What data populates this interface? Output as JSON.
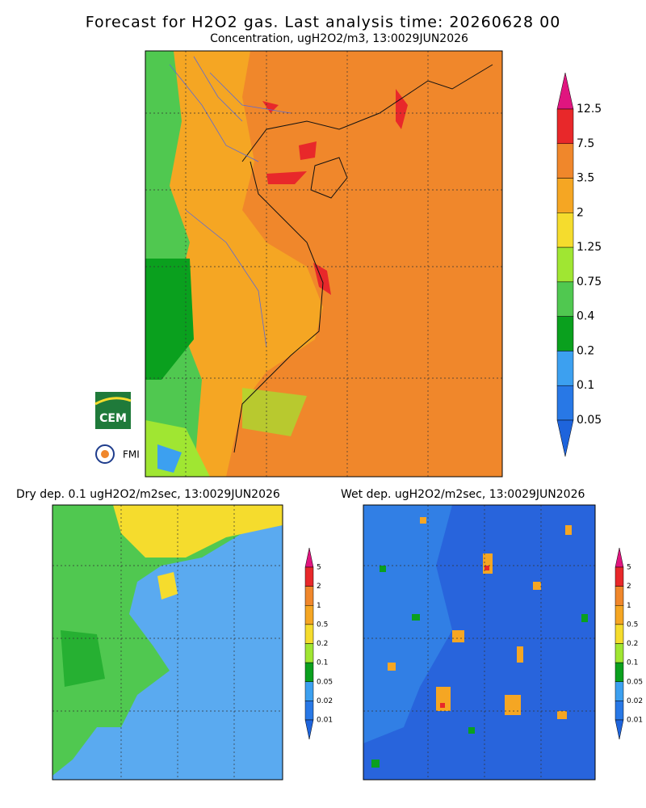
{
  "header": {
    "title": "Forecast for H2O2 gas. Last analysis time: 20260628 00",
    "subtitle": "Concentration, ugH2O2/m3, 13:0029JUN2026"
  },
  "main_map": {
    "colorbar": {
      "labels": [
        "12.5",
        "7.5",
        "3.5",
        "2",
        "1.25",
        "0.75",
        "0.4",
        "0.2",
        "0.1",
        "0.05"
      ],
      "colors": [
        "#e0157f",
        "#e8282a",
        "#f0872b",
        "#f5a623",
        "#f5dc2d",
        "#a0e632",
        "#50c850",
        "#0aa01e",
        "#3ca0f0",
        "#2878e6",
        "#1e64dc"
      ]
    }
  },
  "logos": [
    "CEM",
    "FMI"
  ],
  "dry_map": {
    "title": "Dry dep. 0.1 ugH2O2/m2sec, 13:0029JUN2026",
    "colorbar": {
      "labels": [
        "5",
        "2",
        "1",
        "0.5",
        "0.2",
        "0.1",
        "0.05",
        "0.02",
        "0.01"
      ],
      "colors": [
        "#e0157f",
        "#e8282a",
        "#f0872b",
        "#f5a623",
        "#f5dc2d",
        "#a0e632",
        "#0aa01e",
        "#3ca0f0",
        "#2878e6",
        "#1e64dc"
      ]
    }
  },
  "wet_map": {
    "title": "Wet dep. ugH2O2/m2sec, 13:0029JUN2026",
    "colorbar": {
      "labels": [
        "5",
        "2",
        "1",
        "0.5",
        "0.2",
        "0.1",
        "0.05",
        "0.02",
        "0.01"
      ],
      "colors": [
        "#e0157f",
        "#e8282a",
        "#f0872b",
        "#f5a623",
        "#f5dc2d",
        "#a0e632",
        "#0aa01e",
        "#3ca0f0",
        "#2878e6",
        "#1e64dc"
      ]
    }
  }
}
